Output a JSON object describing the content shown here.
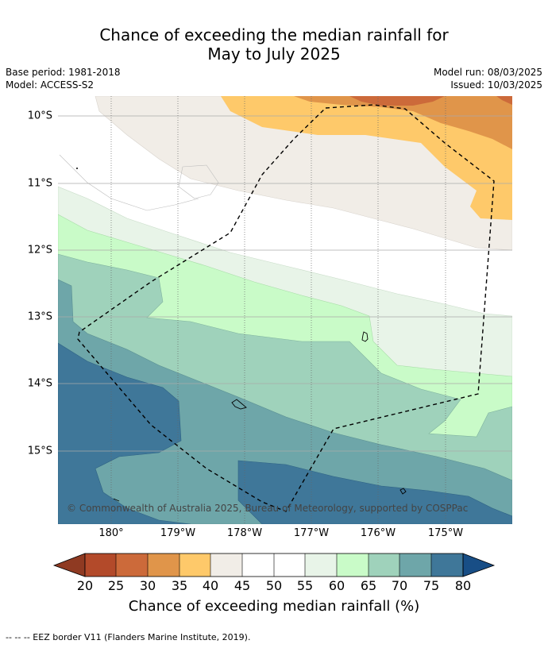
{
  "title_line1": "Chance of exceeding the median rainfall for",
  "title_line2": "May to July 2025",
  "base_period": "Base period: 1981-2018",
  "model": "Model: ACCESS-S2",
  "model_run": "Model run: 08/03/2025",
  "issued": "Issued: 10/03/2025",
  "copyright": "© Commonwealth of Australia 2025, Bureau of Meteorology, supported by COSPPac",
  "lat_labels": [
    "10°S",
    "11°S",
    "12°S",
    "13°S",
    "14°S",
    "15°S"
  ],
  "lon_labels": [
    "180°",
    "179°W",
    "178°W",
    "177°W",
    "176°W",
    "175°W"
  ],
  "colorbar": {
    "label": "Chance of exceeding median rainfall (%)",
    "ticks": [
      "20",
      "25",
      "30",
      "35",
      "40",
      "45",
      "50",
      "55",
      "60",
      "65",
      "70",
      "75",
      "80"
    ],
    "colors": [
      "#8f3a22",
      "#b34a2a",
      "#cc6a3a",
      "#e0954a",
      "#fec96a",
      "#f1ede7",
      "#ffffff",
      "#ffffff",
      "#e8f4e8",
      "#c9fbc8",
      "#9fd2bb",
      "#6ea6a9",
      "#3f7799",
      "#184e86"
    ]
  },
  "footnote": "-- -- -- EEZ border V11 (Flanders Marine Institute, 2019)."
}
